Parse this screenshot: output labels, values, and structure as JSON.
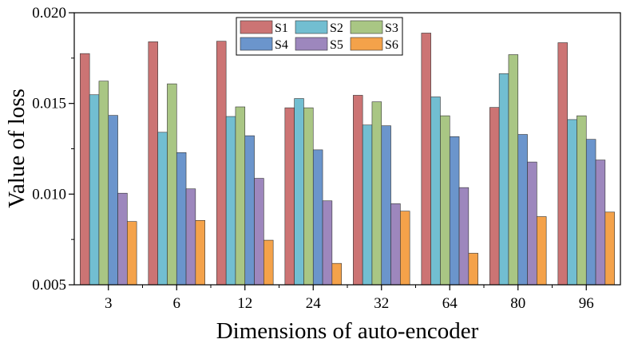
{
  "chart_data": {
    "type": "bar",
    "title": "",
    "xlabel": "Dimensions of auto-encoder",
    "ylabel": "Value of loss",
    "categories": [
      "3",
      "6",
      "12",
      "24",
      "32",
      "64",
      "80",
      "96"
    ],
    "ylim": [
      0.005,
      0.02
    ],
    "yticks": [
      "0.005",
      "0.010",
      "0.015",
      "0.020"
    ],
    "legend_position": "top-center",
    "grid": false,
    "series": [
      {
        "name": "S1",
        "color": "#cc7474",
        "values": [
          0.01775,
          0.0184,
          0.01843,
          0.01476,
          0.01545,
          0.01888,
          0.01478,
          0.01835
        ]
      },
      {
        "name": "S2",
        "color": "#72bed1",
        "values": [
          0.01548,
          0.01341,
          0.01428,
          0.01527,
          0.01381,
          0.01536,
          0.01664,
          0.01411
        ]
      },
      {
        "name": "S3",
        "color": "#a9c684",
        "values": [
          0.01623,
          0.01608,
          0.01481,
          0.01476,
          0.01509,
          0.01432,
          0.01769,
          0.01432
        ]
      },
      {
        "name": "S4",
        "color": "#6b95cc",
        "values": [
          0.01434,
          0.01229,
          0.01322,
          0.01244,
          0.01377,
          0.01317,
          0.01329,
          0.01302
        ]
      },
      {
        "name": "S5",
        "color": "#9d87bd",
        "values": [
          0.01005,
          0.01029,
          0.01087,
          0.00963,
          0.00947,
          0.01036,
          0.01177,
          0.01188
        ]
      },
      {
        "name": "S6",
        "color": "#f4a24a",
        "values": [
          0.00849,
          0.00855,
          0.00746,
          0.00618,
          0.00906,
          0.00674,
          0.00876,
          0.00901
        ]
      }
    ]
  }
}
